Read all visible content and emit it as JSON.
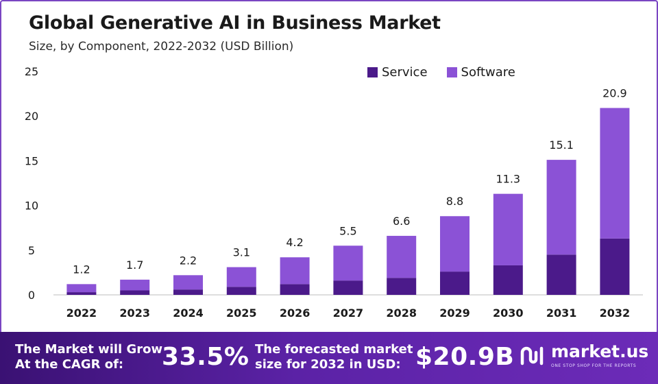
{
  "header": {
    "title": "Global Generative AI in Business Market",
    "subtitle": "Size, by Component, 2022-2032 (USD Billion)"
  },
  "colors": {
    "service": "#4b1a8a",
    "software": "#8b52d6",
    "banner_start": "#3a1173",
    "banner_end": "#6c2bb8",
    "frame": "#7a45c2"
  },
  "chart_data": {
    "type": "bar",
    "stacked": true,
    "title": "Global Generative AI in Business Market",
    "subtitle": "Size, by Component, 2022-2032 (USD Billion)",
    "categories": [
      "2022",
      "2023",
      "2024",
      "2025",
      "2026",
      "2027",
      "2028",
      "2029",
      "2030",
      "2031",
      "2032"
    ],
    "series": [
      {
        "name": "Service",
        "values": [
          0.3,
          0.5,
          0.6,
          0.9,
          1.2,
          1.6,
          1.9,
          2.6,
          3.3,
          4.5,
          6.3
        ]
      },
      {
        "name": "Software",
        "values": [
          0.9,
          1.2,
          1.6,
          2.2,
          3.0,
          3.9,
          4.7,
          6.2,
          8.0,
          10.6,
          14.6
        ]
      }
    ],
    "totals": [
      1.2,
      1.7,
      2.2,
      3.1,
      4.2,
      5.5,
      6.6,
      8.8,
      11.3,
      15.1,
      20.9
    ],
    "total_labels": [
      "1.2",
      "1.7",
      "2.2",
      "3.1",
      "4.2",
      "5.5",
      "6.6",
      "8.8",
      "11.3",
      "15.1",
      "20.9"
    ],
    "yticks": [
      "0",
      "5",
      "10",
      "15",
      "20",
      "25"
    ],
    "ylim": [
      0,
      25
    ],
    "grid": false,
    "legend": "top-right"
  },
  "banner": {
    "cagr_text_line1": "The Market will Grow",
    "cagr_text_line2": "At the CAGR of:",
    "cagr_value": "33.5%",
    "forecast_text_line1": "The forecasted market",
    "forecast_text_line2": "size for 2032 in USD:",
    "forecast_value": "$20.9B",
    "logo_name": "market.us",
    "logo_tagline": "ONE STOP SHOP FOR THE REPORTS"
  }
}
